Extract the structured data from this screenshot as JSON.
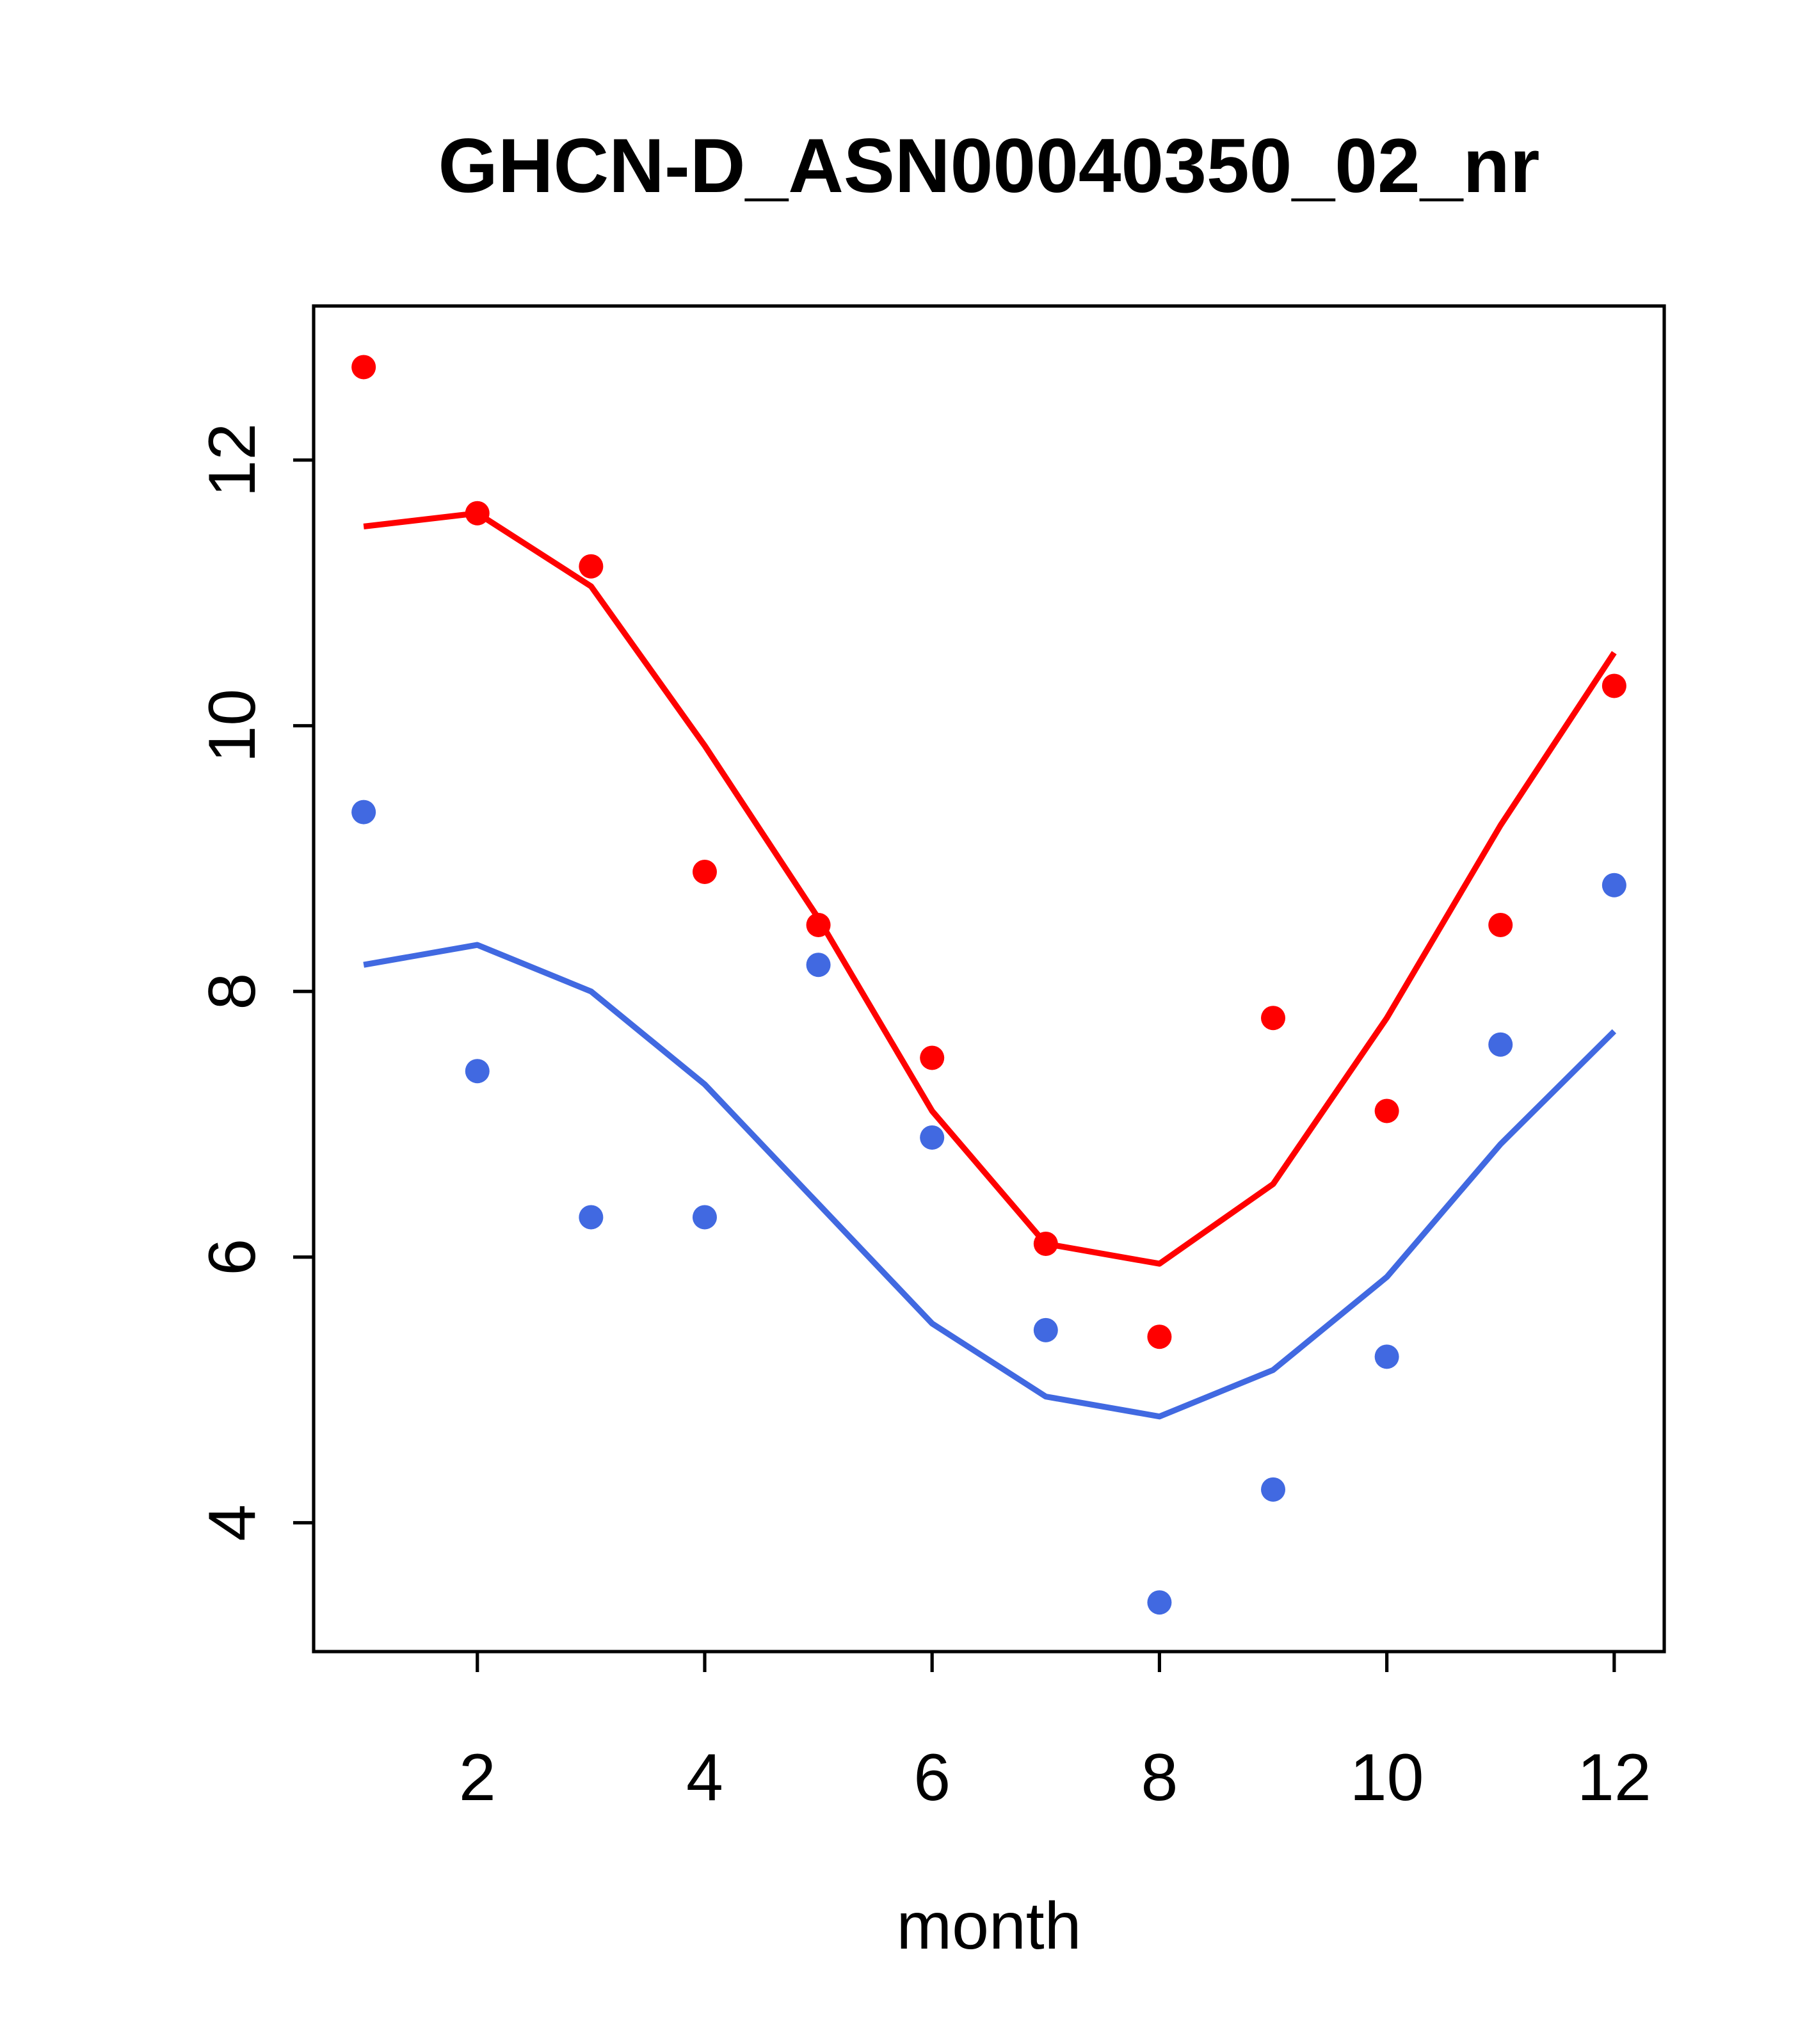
{
  "title": "GHCN-D_ASN00040350_02_nr",
  "chart_data": {
    "type": "scatter",
    "title": "GHCN-D_ASN00040350_02_nr",
    "xlabel": "month",
    "ylabel": "",
    "x": [
      1,
      2,
      3,
      4,
      5,
      6,
      7,
      8,
      9,
      10,
      11,
      12
    ],
    "x_ticks": [
      2,
      4,
      6,
      8,
      10,
      12
    ],
    "y_ticks": [
      12,
      10,
      8,
      6,
      4
    ],
    "xlim": [
      0.56,
      12.44
    ],
    "ylim": [
      3.03,
      13.16
    ],
    "grid": false,
    "legend": "none",
    "box": true,
    "series": [
      {
        "name": "red-line",
        "kind": "line",
        "color": "#ff0000",
        "values": [
          11.5,
          11.6,
          11.05,
          9.85,
          8.55,
          7.1,
          6.1,
          5.95,
          6.55,
          7.8,
          9.25,
          10.55
        ]
      },
      {
        "name": "blue-line",
        "kind": "line",
        "color": "#4169e1",
        "values": [
          8.2,
          8.35,
          8.0,
          7.3,
          6.4,
          5.5,
          4.95,
          4.8,
          5.15,
          5.85,
          6.85,
          7.7
        ]
      },
      {
        "name": "red-points",
        "kind": "points",
        "color": "#ff0000",
        "values": [
          12.7,
          11.6,
          11.2,
          8.9,
          8.5,
          7.5,
          6.1,
          5.4,
          7.8,
          7.1,
          8.5,
          10.3
        ]
      },
      {
        "name": "blue-points",
        "kind": "points",
        "color": "#4169e1",
        "values": [
          9.35,
          7.4,
          6.3,
          6.3,
          8.2,
          6.9,
          5.45,
          3.4,
          4.25,
          5.25,
          7.6,
          8.8
        ]
      }
    ],
    "colors": {
      "red": "#ff0000",
      "blue": "#4169e1",
      "axis": "#000000",
      "background": "#ffffff"
    }
  }
}
